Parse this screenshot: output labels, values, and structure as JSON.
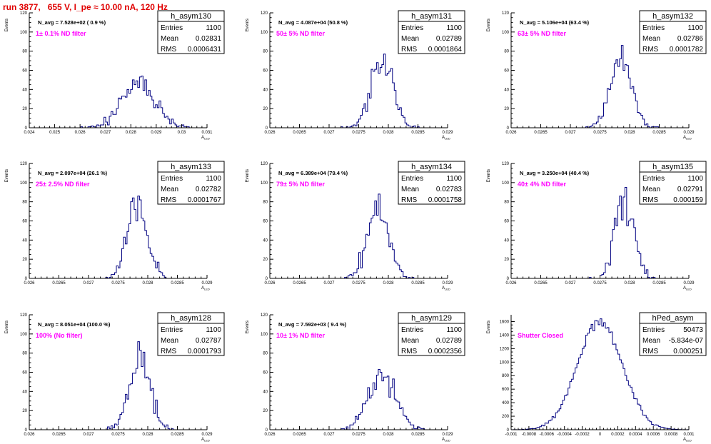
{
  "page": {
    "title": "run 3877,   655 V, I_pe ≈ 10.00 nA, 120 Hz"
  },
  "colors": {
    "title": "#e00000",
    "histogram": "#000080",
    "filter_text": "#ff00ff"
  },
  "common": {
    "ylabel": "Events",
    "xlabel": "A",
    "xlabel_sub": "LED"
  },
  "stats_labels": {
    "entries": "Entries",
    "mean": "Mean",
    "rms": "RMS"
  },
  "chart_data": [
    {
      "type": "histogram",
      "name": "h_asym130",
      "navg": "N_avg = 7.528e+02 ( 0.9 %)",
      "filter": "1± 0.1% ND filter",
      "entries": "1100",
      "mean": "0.02831",
      "rms": "0.0006431",
      "xlim": [
        0.024,
        0.031
      ],
      "ylim": [
        0,
        120
      ],
      "xticks": [
        "0.024",
        "0.025",
        "0.026",
        "0.027",
        "0.028",
        "0.029",
        "0.03",
        "0.031"
      ],
      "xtick_values": [
        0.024,
        0.025,
        0.026,
        0.027,
        0.028,
        0.029,
        0.03,
        0.031
      ],
      "yticks": [
        0,
        20,
        40,
        60,
        80,
        100,
        120
      ],
      "mean_val": 0.02831,
      "rms_val": 0.0006431,
      "entries_val": 1100
    },
    {
      "type": "histogram",
      "name": "h_asym131",
      "navg": "N_avg = 4.087e+04 (50.8 %)",
      "filter": "50± 5% ND filter",
      "entries": "1100",
      "mean": "0.02789",
      "rms": "0.0001864",
      "xlim": [
        0.026,
        0.029
      ],
      "ylim": [
        0,
        120
      ],
      "xticks": [
        "0.026",
        "0.0265",
        "0.027",
        "0.0275",
        "0.028",
        "0.0285",
        "0.029"
      ],
      "xtick_values": [
        0.026,
        0.0265,
        0.027,
        0.0275,
        0.028,
        0.0285,
        0.029
      ],
      "yticks": [
        0,
        20,
        40,
        60,
        80,
        100,
        120
      ],
      "mean_val": 0.02789,
      "rms_val": 0.0001864,
      "entries_val": 1100
    },
    {
      "type": "histogram",
      "name": "h_asym132",
      "navg": "N_avg = 5.106e+04 (63.4 %)",
      "filter": "63± 5% ND filter",
      "entries": "1100",
      "mean": "0.02786",
      "rms": "0.0001782",
      "xlim": [
        0.026,
        0.029
      ],
      "ylim": [
        0,
        120
      ],
      "xticks": [
        "0.026",
        "0.0265",
        "0.027",
        "0.0275",
        "0.028",
        "0.0285",
        "0.029"
      ],
      "xtick_values": [
        0.026,
        0.0265,
        0.027,
        0.0275,
        0.028,
        0.0285,
        0.029
      ],
      "yticks": [
        0,
        20,
        40,
        60,
        80,
        100,
        120
      ],
      "mean_val": 0.02786,
      "rms_val": 0.0001782,
      "entries_val": 1100
    },
    {
      "type": "histogram",
      "name": "h_asym133",
      "navg": "N_avg = 2.097e+04 (26.1 %)",
      "filter": "25± 2.5% ND filter",
      "entries": "1100",
      "mean": "0.02782",
      "rms": "0.0001767",
      "xlim": [
        0.026,
        0.029
      ],
      "ylim": [
        0,
        120
      ],
      "xticks": [
        "0.026",
        "0.0265",
        "0.027",
        "0.0275",
        "0.028",
        "0.0285",
        "0.029"
      ],
      "xtick_values": [
        0.026,
        0.0265,
        0.027,
        0.0275,
        0.028,
        0.0285,
        0.029
      ],
      "yticks": [
        0,
        20,
        40,
        60,
        80,
        100,
        120
      ],
      "mean_val": 0.02782,
      "rms_val": 0.0001767,
      "entries_val": 1100
    },
    {
      "type": "histogram",
      "name": "h_asym134",
      "navg": "N_avg = 6.389e+04 (79.4 %)",
      "filter": "79± 5% ND filter",
      "entries": "1100",
      "mean": "0.02783",
      "rms": "0.0001758",
      "xlim": [
        0.026,
        0.029
      ],
      "ylim": [
        0,
        120
      ],
      "xticks": [
        "0.026",
        "0.0265",
        "0.027",
        "0.0275",
        "0.028",
        "0.0285",
        "0.029"
      ],
      "xtick_values": [
        0.026,
        0.0265,
        0.027,
        0.0275,
        0.028,
        0.0285,
        0.029
      ],
      "yticks": [
        0,
        20,
        40,
        60,
        80,
        100,
        120
      ],
      "mean_val": 0.02783,
      "rms_val": 0.0001758,
      "entries_val": 1100
    },
    {
      "type": "histogram",
      "name": "h_asym135",
      "navg": "N_avg = 3.250e+04 (40.4 %)",
      "filter": "40± 4% ND filter",
      "entries": "1100",
      "mean": "0.02791",
      "rms": "0.000159",
      "xlim": [
        0.026,
        0.029
      ],
      "ylim": [
        0,
        120
      ],
      "xticks": [
        "0.026",
        "0.0265",
        "0.027",
        "0.0275",
        "0.028",
        "0.0285",
        "0.029"
      ],
      "xtick_values": [
        0.026,
        0.0265,
        0.027,
        0.0275,
        0.028,
        0.0285,
        0.029
      ],
      "yticks": [
        0,
        20,
        40,
        60,
        80,
        100,
        120
      ],
      "mean_val": 0.02791,
      "rms_val": 0.000159,
      "entries_val": 1100
    },
    {
      "type": "histogram",
      "name": "h_asym128",
      "navg": "N_avg = 8.051e+04 (100.0 %)",
      "filter": "100% (No filter)",
      "entries": "1100",
      "mean": "0.02787",
      "rms": "0.0001793",
      "xlim": [
        0.026,
        0.029
      ],
      "ylim": [
        0,
        120
      ],
      "xticks": [
        "0.026",
        "0.0265",
        "0.027",
        "0.0275",
        "0.028",
        "0.0285",
        "0.029"
      ],
      "xtick_values": [
        0.026,
        0.0265,
        0.027,
        0.0275,
        0.028,
        0.0285,
        0.029
      ],
      "yticks": [
        0,
        20,
        40,
        60,
        80,
        100,
        120
      ],
      "mean_val": 0.02787,
      "rms_val": 0.0001793,
      "entries_val": 1100
    },
    {
      "type": "histogram",
      "name": "h_asym129",
      "navg": "N_avg = 7.592e+03 ( 9.4 %)",
      "filter": "10± 1% ND filter",
      "entries": "1100",
      "mean": "0.02789",
      "rms": "0.0002356",
      "xlim": [
        0.026,
        0.029
      ],
      "ylim": [
        0,
        120
      ],
      "xticks": [
        "0.026",
        "0.0265",
        "0.027",
        "0.0275",
        "0.028",
        "0.0285",
        "0.029"
      ],
      "xtick_values": [
        0.026,
        0.0265,
        0.027,
        0.0275,
        0.028,
        0.0285,
        0.029
      ],
      "yticks": [
        0,
        20,
        40,
        60,
        80,
        100,
        120
      ],
      "mean_val": 0.02789,
      "rms_val": 0.0002356,
      "entries_val": 1100
    },
    {
      "type": "histogram",
      "name": "hPed_asym",
      "navg": "",
      "filter": "Shutter Closed",
      "entries": "50473",
      "mean": "-5.834e-07",
      "rms": "0.000251",
      "xlim": [
        -0.001,
        0.001
      ],
      "ylim": [
        0,
        1700
      ],
      "xticks": [
        "-0.001",
        "-0.0008",
        "-0.0006",
        "-0.0004",
        "-0.0002",
        "0",
        "0.0002",
        "0.0004",
        "0.0006",
        "0.0008",
        "0.001"
      ],
      "xtick_values": [
        -0.001,
        -0.0008,
        -0.0006,
        -0.0004,
        -0.0002,
        0,
        0.0002,
        0.0004,
        0.0006,
        0.0008,
        0.001
      ],
      "yticks": [
        0,
        200,
        400,
        600,
        800,
        1000,
        1200,
        1400,
        1600
      ],
      "mean_val": -5.834e-07,
      "rms_val": 0.000251,
      "entries_val": 50473
    }
  ]
}
